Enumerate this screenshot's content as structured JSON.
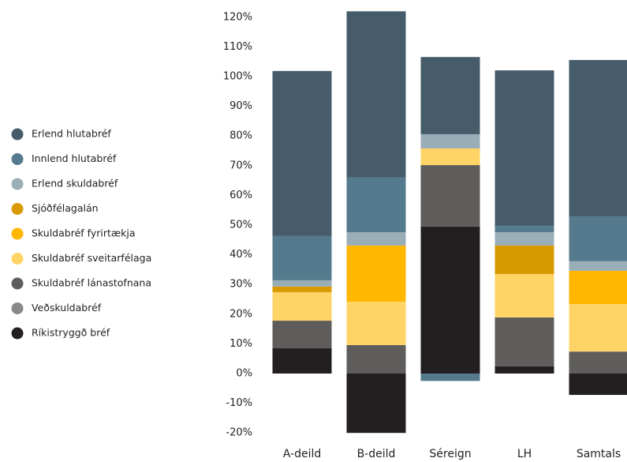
{
  "chart_data": {
    "type": "stacked-bar",
    "categories": [
      "A-deild",
      "B-deild",
      "Séreign",
      "LH",
      "Samtals"
    ],
    "series": [
      {
        "name": "Erlend hlutabréf",
        "color": "#465c6b",
        "values": [
          55.6,
          56,
          26,
          52.4,
          52.7
        ]
      },
      {
        "name": "Innlend hlutabréf",
        "color": "#557a8d",
        "values": [
          14.9,
          18.4,
          -2.5,
          2.1,
          15.1
        ]
      },
      {
        "name": "Erlend skuldabréf",
        "color": "#9aaeb8",
        "values": [
          2.1,
          4.5,
          4.8,
          4.5,
          3.2
        ]
      },
      {
        "name": "Sjóðfélagalán",
        "color": "#d99a00",
        "values": [
          1.9,
          0,
          0,
          9.6,
          0
        ]
      },
      {
        "name": "Skuldabréf fyrirtækja",
        "color": "#ffb700",
        "values": [
          0,
          18.9,
          0,
          0,
          11.2
        ]
      },
      {
        "name": "Skuldabréf sveitarfélaga",
        "color": "#ffd466",
        "values": [
          9.6,
          14.6,
          5.6,
          14.6,
          16
        ]
      },
      {
        "name": "Skuldabréf lánastofnana",
        "color": "#5f5d5b",
        "values": [
          9.3,
          9.6,
          20.7,
          16.5,
          7.4
        ]
      },
      {
        "name": "Veðskuldabréf",
        "color": "#8a8886",
        "values": [
          0,
          0,
          0,
          0,
          0
        ]
      },
      {
        "name": "Ríkistryggð bréf",
        "color": "#231f20",
        "values": [
          8.5,
          -20,
          49.5,
          2.4,
          -7.2
        ]
      }
    ],
    "ylim": [
      -22,
      122
    ],
    "yticks": [
      {
        "value": -20,
        "label": "-20%"
      },
      {
        "value": -10,
        "label": "-10%"
      },
      {
        "value": 0,
        "label": "0%"
      },
      {
        "value": 10,
        "label": "10%"
      },
      {
        "value": 20,
        "label": "20%"
      },
      {
        "value": 30,
        "label": "30%"
      },
      {
        "value": 40,
        "label": "40%"
      },
      {
        "value": 50,
        "label": "50%"
      },
      {
        "value": 60,
        "label": "60%"
      },
      {
        "value": 70,
        "label": "70%"
      },
      {
        "value": 80,
        "label": "80%"
      },
      {
        "value": 90,
        "label": "90%"
      },
      {
        "value": 100,
        "label": "100%"
      },
      {
        "value": 110,
        "label": "110%"
      },
      {
        "value": 120,
        "label": "120%"
      }
    ]
  }
}
